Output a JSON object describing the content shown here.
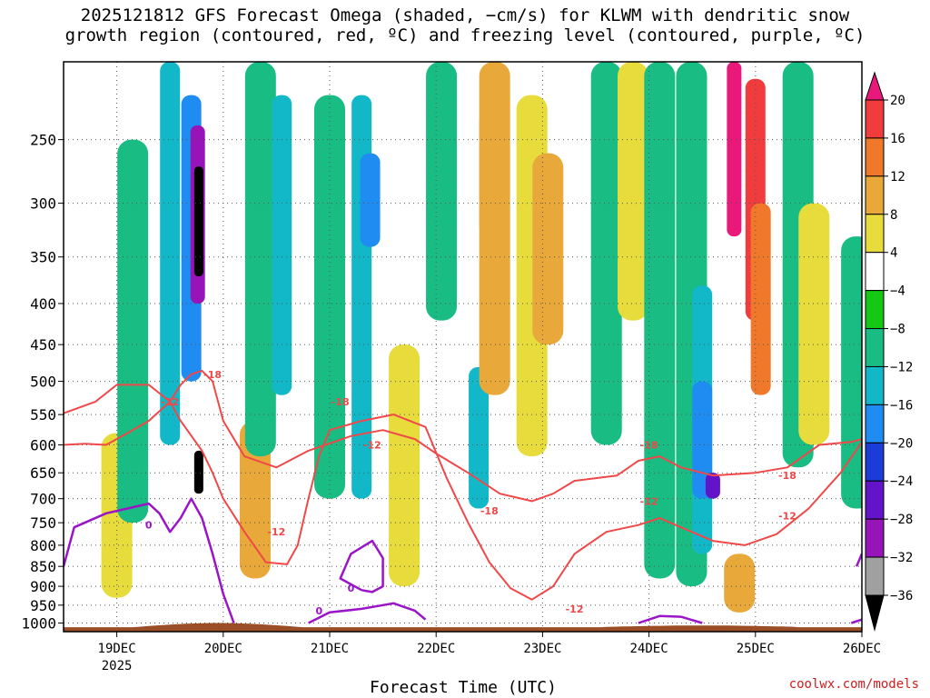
{
  "chart_data": {
    "type": "heatmap",
    "title_lines": [
      "2025121812 GFS Forecast Omega (shaded, −cm/s) for KLWM with dendritic snow",
      "growth region (contoured, red, ºC) and freezing level (contoured, purple, ºC)"
    ],
    "xlabel": "Forecast Time (UTC)",
    "x_ticks": [
      {
        "day": 19,
        "label": "19DEC",
        "sub": "2025"
      },
      {
        "day": 20,
        "label": "20DEC",
        "sub": ""
      },
      {
        "day": 21,
        "label": "21DEC",
        "sub": ""
      },
      {
        "day": 22,
        "label": "22DEC",
        "sub": ""
      },
      {
        "day": 23,
        "label": "23DEC",
        "sub": ""
      },
      {
        "day": 24,
        "label": "24DEC",
        "sub": ""
      },
      {
        "day": 25,
        "label": "25DEC",
        "sub": ""
      },
      {
        "day": 26,
        "label": "26DEC",
        "sub": ""
      }
    ],
    "xlim": [
      18.5,
      26
    ],
    "y_ticks": [
      250,
      300,
      350,
      400,
      450,
      500,
      550,
      600,
      650,
      700,
      750,
      800,
      850,
      900,
      950,
      1000
    ],
    "ylim": [
      1025,
      200
    ],
    "y_scale": "log-pressure",
    "grid": true,
    "colorbar": {
      "labels": [
        "20",
        "16",
        "12",
        "8",
        "4",
        "−4",
        "−8",
        "−12",
        "−16",
        "−20",
        "−24",
        "−28",
        "−32",
        "−36"
      ],
      "colors": [
        "#e8197a",
        "#f03c3c",
        "#f0782a",
        "#e8a83a",
        "#e8dc3c",
        "#ffffff",
        "#14c814",
        "#19bc82",
        "#13b8c8",
        "#1e8cf0",
        "#1c3cd8",
        "#6414c8",
        "#9614b8",
        "#a0a0a0",
        "#000000"
      ]
    },
    "dgz_contours": [
      {
        "label": "-18",
        "color": "#f04848",
        "points": [
          [
            18.5,
            600
          ],
          [
            18.7,
            598
          ],
          [
            18.9,
            600
          ],
          [
            19.1,
            580
          ],
          [
            19.3,
            560
          ],
          [
            19.5,
            530
          ],
          [
            19.6,
            505
          ],
          [
            19.7,
            490
          ],
          [
            19.8,
            485
          ],
          [
            19.9,
            500
          ],
          [
            20.0,
            560
          ],
          [
            20.2,
            620
          ],
          [
            20.5,
            640
          ],
          [
            20.8,
            610
          ],
          [
            21.2,
            585
          ],
          [
            21.5,
            575
          ],
          [
            21.8,
            590
          ],
          [
            22.0,
            615
          ],
          [
            22.3,
            650
          ],
          [
            22.6,
            690
          ],
          [
            22.9,
            705
          ],
          [
            23.1,
            690
          ],
          [
            23.3,
            665
          ],
          [
            23.7,
            655
          ],
          [
            23.9,
            628
          ],
          [
            24.1,
            620
          ],
          [
            24.3,
            640
          ],
          [
            24.6,
            655
          ],
          [
            25.0,
            650
          ],
          [
            25.3,
            640
          ],
          [
            25.6,
            600
          ],
          [
            25.9,
            595
          ],
          [
            26.0,
            590
          ]
        ]
      },
      {
        "label": "-12",
        "color": "#f04848",
        "points": [
          [
            18.5,
            548
          ],
          [
            18.8,
            530
          ],
          [
            19.0,
            505
          ],
          [
            19.3,
            505
          ],
          [
            19.5,
            530
          ],
          [
            19.6,
            560
          ],
          [
            19.8,
            610
          ],
          [
            19.9,
            650
          ],
          [
            20.0,
            700
          ],
          [
            20.2,
            770
          ],
          [
            20.4,
            840
          ],
          [
            20.6,
            845
          ],
          [
            20.7,
            800
          ],
          [
            20.8,
            700
          ],
          [
            20.9,
            620
          ],
          [
            21.0,
            575
          ],
          [
            21.3,
            560
          ],
          [
            21.6,
            550
          ],
          [
            21.9,
            570
          ],
          [
            22.1,
            660
          ],
          [
            22.3,
            750
          ],
          [
            22.5,
            840
          ],
          [
            22.7,
            905
          ],
          [
            22.9,
            935
          ],
          [
            23.1,
            900
          ],
          [
            23.3,
            820
          ],
          [
            23.6,
            770
          ],
          [
            23.9,
            755
          ],
          [
            24.1,
            740
          ],
          [
            24.3,
            760
          ],
          [
            24.6,
            790
          ],
          [
            24.9,
            800
          ],
          [
            25.2,
            775
          ],
          [
            25.5,
            720
          ],
          [
            25.8,
            650
          ],
          [
            26.0,
            595
          ]
        ]
      }
    ],
    "dgz_labels": [
      {
        "text": "-18",
        "day": 19.9,
        "p": 490
      },
      {
        "text": "-12",
        "day": 19.5,
        "p": 530
      },
      {
        "text": "-18",
        "day": 21.1,
        "p": 530
      },
      {
        "text": "-12",
        "day": 21.4,
        "p": 600
      },
      {
        "text": "-18",
        "day": 22.5,
        "p": 725
      },
      {
        "text": "-12",
        "day": 20.5,
        "p": 770
      },
      {
        "text": "-12",
        "day": 23.3,
        "p": 960
      },
      {
        "text": "-18",
        "day": 24.0,
        "p": 600
      },
      {
        "text": "-12",
        "day": 24.0,
        "p": 705
      },
      {
        "text": "-18",
        "day": 25.3,
        "p": 655
      },
      {
        "text": "-12",
        "day": 25.3,
        "p": 735
      }
    ],
    "freezing_contours": [
      {
        "label": "0",
        "color": "#9a14c8",
        "points": [
          [
            18.5,
            850
          ],
          [
            18.6,
            760
          ],
          [
            18.9,
            730
          ],
          [
            19.1,
            720
          ],
          [
            19.3,
            710
          ],
          [
            19.4,
            730
          ],
          [
            19.5,
            770
          ],
          [
            19.6,
            740
          ],
          [
            19.7,
            700
          ],
          [
            19.8,
            740
          ],
          [
            19.9,
            820
          ],
          [
            20.0,
            920
          ],
          [
            20.1,
            1000
          ]
        ]
      },
      {
        "label": "0",
        "color": "#9a14c8",
        "points": [
          [
            21.3,
            910
          ],
          [
            21.1,
            880
          ],
          [
            21.2,
            820
          ],
          [
            21.4,
            790
          ],
          [
            21.5,
            830
          ],
          [
            21.5,
            900
          ],
          [
            21.4,
            915
          ],
          [
            21.3,
            910
          ]
        ]
      },
      {
        "label": "0",
        "color": "#9a14c8",
        "points": [
          [
            20.8,
            1000
          ],
          [
            21.0,
            970
          ],
          [
            21.3,
            960
          ],
          [
            21.6,
            945
          ],
          [
            21.8,
            965
          ],
          [
            21.9,
            990
          ]
        ]
      },
      {
        "label": "0",
        "color": "#9a14c8",
        "points": [
          [
            23.9,
            1000
          ],
          [
            24.1,
            980
          ],
          [
            24.3,
            982
          ],
          [
            24.5,
            1000
          ]
        ]
      },
      {
        "label": "0",
        "color": "#9a14c8",
        "points": [
          [
            25.9,
            1000
          ],
          [
            26.0,
            990
          ]
        ]
      },
      {
        "label": "0",
        "color": "#9a14c8",
        "points": [
          [
            25.95,
            850
          ],
          [
            26.0,
            820
          ]
        ]
      }
    ],
    "freezing_labels": [
      {
        "text": "0",
        "day": 19.3,
        "p": 755
      },
      {
        "text": "0",
        "day": 21.2,
        "p": 905
      },
      {
        "text": "0",
        "day": 20.9,
        "p": 965
      }
    ],
    "omega_regions": [
      {
        "value": 4,
        "day": 19.0,
        "p0": 580,
        "p1": 930
      },
      {
        "value": -8,
        "day": 19.15,
        "p0": 250,
        "p1": 750
      },
      {
        "value": -12,
        "day": 19.5,
        "p0": 200,
        "p1": 600
      },
      {
        "value": -16,
        "day": 19.7,
        "p0": 220,
        "p1": 500
      },
      {
        "value": -28,
        "day": 19.76,
        "p0": 240,
        "p1": 400
      },
      {
        "value": -36,
        "day": 19.77,
        "p0": 270,
        "p1": 370
      },
      {
        "value": -36,
        "day": 19.77,
        "p0": 610,
        "p1": 690
      },
      {
        "value": 8,
        "day": 20.3,
        "p0": 560,
        "p1": 880
      },
      {
        "value": -8,
        "day": 20.35,
        "p0": 200,
        "p1": 620
      },
      {
        "value": -12,
        "day": 20.55,
        "p0": 220,
        "p1": 520
      },
      {
        "value": -8,
        "day": 21.0,
        "p0": 220,
        "p1": 700
      },
      {
        "value": -12,
        "day": 21.3,
        "p0": 220,
        "p1": 700
      },
      {
        "value": -16,
        "day": 21.38,
        "p0": 260,
        "p1": 340
      },
      {
        "value": 4,
        "day": 21.7,
        "p0": 450,
        "p1": 900
      },
      {
        "value": -8,
        "day": 22.05,
        "p0": 200,
        "p1": 420
      },
      {
        "value": -12,
        "day": 22.4,
        "p0": 480,
        "p1": 720
      },
      {
        "value": 12,
        "day": 22.5,
        "p0": 230,
        "p1": 330
      },
      {
        "value": 8,
        "day": 22.55,
        "p0": 200,
        "p1": 520
      },
      {
        "value": 4,
        "day": 22.9,
        "p0": 220,
        "p1": 620
      },
      {
        "value": 8,
        "day": 23.05,
        "p0": 260,
        "p1": 450
      },
      {
        "value": -8,
        "day": 23.6,
        "p0": 200,
        "p1": 600
      },
      {
        "value": 4,
        "day": 23.85,
        "p0": 200,
        "p1": 420
      },
      {
        "value": -8,
        "day": 24.1,
        "p0": 200,
        "p1": 880
      },
      {
        "value": -8,
        "day": 24.4,
        "p0": 200,
        "p1": 900
      },
      {
        "value": -12,
        "day": 24.5,
        "p0": 380,
        "p1": 820
      },
      {
        "value": -16,
        "day": 24.5,
        "p0": 500,
        "p1": 700
      },
      {
        "value": -24,
        "day": 24.6,
        "p0": 650,
        "p1": 700
      },
      {
        "value": 20,
        "day": 24.8,
        "p0": 200,
        "p1": 330
      },
      {
        "value": 16,
        "day": 25.0,
        "p0": 210,
        "p1": 420
      },
      {
        "value": 12,
        "day": 25.05,
        "p0": 300,
        "p1": 520
      },
      {
        "value": 8,
        "day": 24.85,
        "p0": 820,
        "p1": 970
      },
      {
        "value": -8,
        "day": 25.4,
        "p0": 200,
        "p1": 640
      },
      {
        "value": 4,
        "day": 25.55,
        "p0": 300,
        "p1": 600
      },
      {
        "value": -8,
        "day": 25.95,
        "p0": 330,
        "p1": 720
      }
    ],
    "terrain_color": "#9b4e26",
    "dgz_color": "#f04848",
    "freezing_color": "#9a14c8"
  },
  "credit": "coolwx.com/models"
}
